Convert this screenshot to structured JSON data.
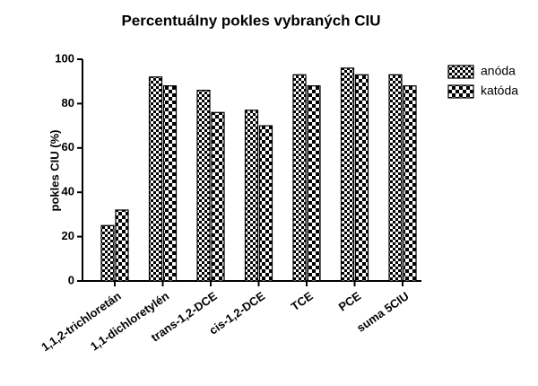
{
  "chart_data": {
    "type": "bar",
    "title": "Percentuálny pokles vybraných CIU",
    "ylabel": "pokles CIU (%)",
    "categories": [
      "1,1,2-trichloretán",
      "1,1-dichloretylén",
      "trans-1,2-DCE",
      "cis-1,2-DCE",
      "TCE",
      "PCE",
      "suma 5CIU"
    ],
    "series": [
      {
        "name": "anóda",
        "color": "#000000",
        "values": [
          25,
          92,
          86,
          77,
          93,
          96,
          93
        ]
      },
      {
        "name": "katóda",
        "color": "#000000",
        "values": [
          32,
          88,
          76,
          70,
          88,
          93,
          88
        ]
      }
    ],
    "ylim": [
      0,
      100
    ],
    "yticks": [
      0,
      20,
      40,
      60,
      80,
      100
    ],
    "grid": false,
    "legend": "right"
  }
}
